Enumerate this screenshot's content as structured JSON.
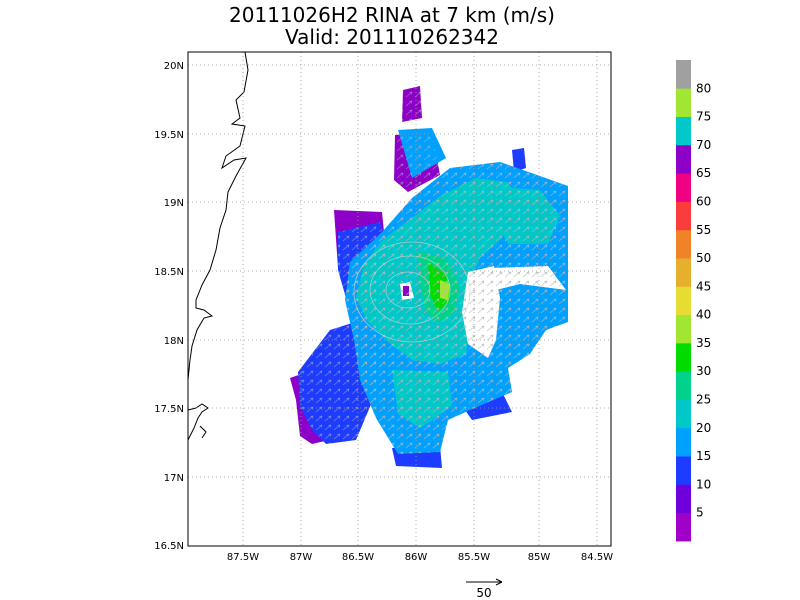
{
  "title": {
    "line1": "20111026H2 RINA at 7 km (m/s)",
    "line2": "Valid: 201110262342"
  },
  "axes": {
    "lon_ticks": [
      "87.5W",
      "87W",
      "86.5W",
      "86W",
      "85.5W",
      "85W",
      "84.5W"
    ],
    "lat_ticks": [
      "20N",
      "19.5N",
      "19N",
      "18.5N",
      "18N",
      "17.5N",
      "17N",
      "16.5N"
    ],
    "lon_range": [
      -88.0,
      -84.5
    ],
    "lat_range": [
      16.5,
      20.0
    ]
  },
  "colorbar": {
    "labels": [
      "5",
      "10",
      "15",
      "20",
      "25",
      "30",
      "35",
      "40",
      "45",
      "50",
      "55",
      "60",
      "65",
      "70",
      "75",
      "80"
    ],
    "colors": [
      "#a000c8",
      "#6e00dc",
      "#1e3cff",
      "#00a0ff",
      "#00c8c8",
      "#00d28c",
      "#00dc00",
      "#a0e632",
      "#e6dc32",
      "#e6af2d",
      "#f08228",
      "#fa3c3c",
      "#f00082",
      "#8c00c8",
      "#00c8c8",
      "#a0e632",
      "#a0a0a0"
    ]
  },
  "reference_vector": {
    "label": "50"
  },
  "storm_center": {
    "lon": -86.1,
    "lat": 18.3
  }
}
